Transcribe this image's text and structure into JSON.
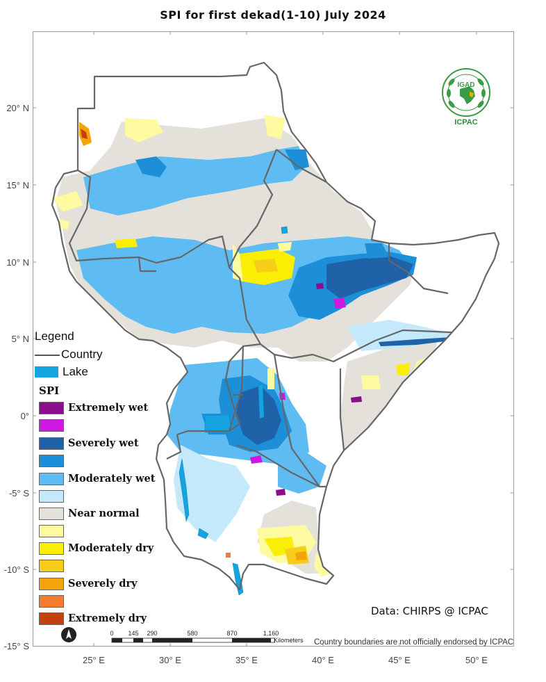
{
  "title": "SPI  for   first dekad(1-10) July 2024",
  "lat_labels": [
    "20° N",
    "15° N",
    "10° N",
    "5° N",
    "0°",
    "-5° S",
    "-10° S",
    "-15° S"
  ],
  "lon_labels": [
    "25° E",
    "30° E",
    "35° E",
    "40° E",
    "45° E",
    "50° E"
  ],
  "legend": {
    "title": "Legend",
    "country_label": "Country",
    "lake_label": "Lake",
    "lake_color": "#16a4e0",
    "spi_title": "SPI",
    "spi_classes": [
      {
        "label": "Extremely wet",
        "color": "#8b0f8c"
      },
      {
        "label": "",
        "color": "#cc18e0"
      },
      {
        "label": "Severely wet",
        "color": "#1f62a8"
      },
      {
        "label": "",
        "color": "#1c8fd8"
      },
      {
        "label": "Moderately wet",
        "color": "#5fbcf2"
      },
      {
        "label": "",
        "color": "#c4e9fb"
      },
      {
        "label": "Near normal",
        "color": "#e3e1da"
      },
      {
        "label": "",
        "color": "#fdfaa0"
      },
      {
        "label": "Moderately dry",
        "color": "#fbee05"
      },
      {
        "label": "",
        "color": "#f6cd18"
      },
      {
        "label": "Severely dry",
        "color": "#f3a40b"
      },
      {
        "label": "",
        "color": "#f77b2c"
      },
      {
        "label": "Extremely dry",
        "color": "#c4400f"
      }
    ]
  },
  "scale_bar": {
    "ticks": [
      "0",
      "145",
      "290",
      "580",
      "870",
      "1,160"
    ],
    "units": "Kilometers"
  },
  "source": "Data: CHIRPS @ ICPAC",
  "disclaimer": "Country boundaries are not officially endorsed by ICPAC",
  "logo": {
    "name": "IGAD",
    "org": "ICPAC"
  },
  "north_arrow_icon": "north-arrow-icon"
}
